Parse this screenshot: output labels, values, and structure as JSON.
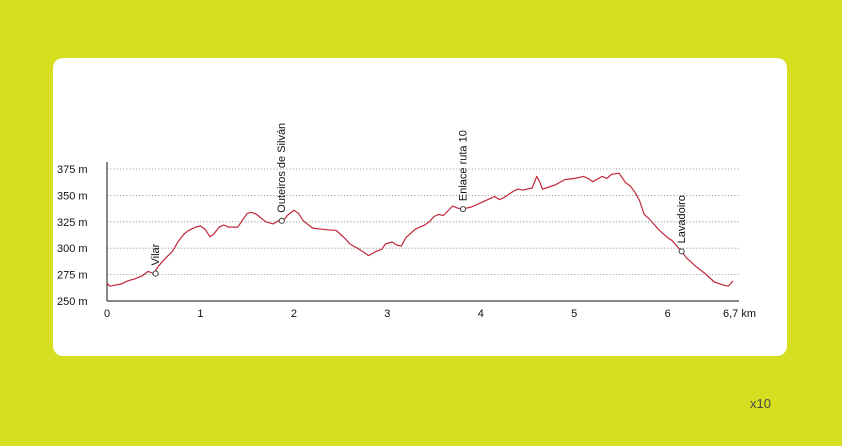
{
  "scale_note": "x10",
  "chart_data": {
    "type": "line",
    "title": "",
    "xlabel": "",
    "ylabel": "",
    "x_unit": "km",
    "y_unit": "m",
    "xlim": [
      0,
      6.7
    ],
    "ylim": [
      250,
      375
    ],
    "grid": true,
    "grid_style": "dotted-horizontal",
    "line_color": "#c0283a",
    "x_ticks": [
      {
        "value": 0,
        "label": "0"
      },
      {
        "value": 1,
        "label": "1"
      },
      {
        "value": 2,
        "label": "2"
      },
      {
        "value": 3,
        "label": "3"
      },
      {
        "value": 4,
        "label": "4"
      },
      {
        "value": 5,
        "label": "5"
      },
      {
        "value": 6,
        "label": "6"
      },
      {
        "value": 6.7,
        "label": "6,7 km"
      }
    ],
    "y_ticks": [
      {
        "value": 250,
        "label": "250 m"
      },
      {
        "value": 275,
        "label": "275 m"
      },
      {
        "value": 300,
        "label": "300 m"
      },
      {
        "value": 325,
        "label": "325 m"
      },
      {
        "value": 350,
        "label": "350 m"
      },
      {
        "value": 375,
        "label": "375 m"
      }
    ],
    "waypoints": [
      {
        "name": "Vilar",
        "x": 0.52,
        "y": 276
      },
      {
        "name": "Outeiros de Silván",
        "x": 1.87,
        "y": 326
      },
      {
        "name": "Enlace ruta 10",
        "x": 3.81,
        "y": 337
      },
      {
        "name": "Lavadoiro",
        "x": 6.15,
        "y": 297
      }
    ],
    "series": [
      {
        "x": [
          0,
          0.03,
          0.08,
          0.15,
          0.22,
          0.3,
          0.38,
          0.44,
          0.5,
          0.55,
          0.62,
          0.7,
          0.76,
          0.82,
          0.86,
          0.9,
          0.95,
          1.0,
          1.05,
          1.1,
          1.14,
          1.2,
          1.25,
          1.3,
          1.4,
          1.5,
          1.55,
          1.6,
          1.7,
          1.78,
          1.83,
          1.87,
          1.93,
          2.0,
          2.05,
          2.1,
          2.2,
          2.3,
          2.4,
          2.45,
          2.5,
          2.55,
          2.6,
          2.7,
          2.8,
          2.88,
          2.94,
          2.98,
          3.05,
          3.1,
          3.15,
          3.2,
          3.3,
          3.35,
          3.4,
          3.45,
          3.5,
          3.55,
          3.6,
          3.7,
          3.75,
          3.8,
          3.9,
          4.0,
          4.1,
          4.15,
          4.2,
          4.25,
          4.3,
          4.35,
          4.4,
          4.45,
          4.5,
          4.55,
          4.6,
          4.63,
          4.66,
          4.7,
          4.8,
          4.9,
          5.0,
          5.1,
          5.15,
          5.2,
          5.3,
          5.35,
          5.4,
          5.48,
          5.52,
          5.55,
          5.6,
          5.65,
          5.7,
          5.75,
          5.8,
          5.85,
          5.9,
          5.95,
          6.0,
          6.05,
          6.1,
          6.15,
          6.2,
          6.3,
          6.4,
          6.5,
          6.6,
          6.65,
          6.7
        ],
        "y": [
          267,
          264,
          265,
          266,
          269,
          271,
          274,
          278,
          276,
          283,
          290,
          297,
          306,
          313,
          316,
          318,
          320,
          321,
          318,
          311,
          313,
          320,
          322,
          320,
          320,
          333,
          334,
          332,
          325,
          323,
          326,
          324,
          331,
          336,
          333,
          326,
          319,
          318,
          317,
          317,
          313,
          309,
          304,
          299,
          293,
          297,
          299,
          304,
          306,
          303,
          302,
          310,
          318,
          320,
          322,
          325,
          330,
          332,
          331,
          340,
          338,
          337,
          339,
          343,
          347,
          349,
          346,
          348,
          351,
          354,
          356,
          355,
          356,
          357,
          368,
          363,
          356,
          357,
          360,
          365,
          366,
          368,
          366,
          363,
          368,
          366,
          370,
          371,
          366,
          362,
          359,
          353,
          345,
          332,
          328,
          323,
          318,
          314,
          310,
          307,
          302,
          297,
          291,
          283,
          276,
          268,
          265,
          264,
          269
        ]
      }
    ]
  }
}
